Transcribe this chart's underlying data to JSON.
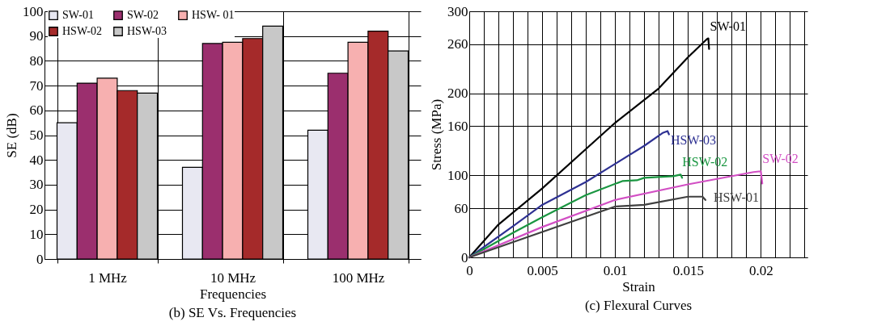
{
  "chart_data": [
    {
      "type": "bar",
      "title": "(b) SE Vs. Frequencies",
      "xlabel": "Frequencies",
      "ylabel": "SE (dB)",
      "categories": [
        "1 MHz",
        "10 MHz",
        "100 MHz"
      ],
      "series": [
        {
          "name": "SW-01",
          "color": "#e8e8f2",
          "values": [
            55,
            37,
            52
          ]
        },
        {
          "name": "SW-02",
          "color": "#9b2f6e",
          "values": [
            71,
            87,
            75
          ]
        },
        {
          "name": "HSW- 01",
          "color": "#f7b0b0",
          "values": [
            73,
            87.5,
            87.5
          ]
        },
        {
          "name": "HSW-02",
          "color": "#a52a2a",
          "values": [
            68,
            89,
            92
          ]
        },
        {
          "name": "HSW-03",
          "color": "#c8c8c8",
          "values": [
            67,
            94,
            84
          ]
        }
      ],
      "ylim": [
        0,
        100
      ],
      "yticks": [
        0,
        10,
        20,
        30,
        40,
        50,
        60,
        70,
        80,
        90,
        100
      ],
      "grid": true,
      "legend": "top left"
    },
    {
      "type": "line",
      "title": "(c) Flexural Curves",
      "xlabel": "Strain",
      "ylabel": "Stress (MPa)",
      "series": [
        {
          "name": "SW-01",
          "color": "#000000",
          "x": [
            0,
            0.002,
            0.005,
            0.008,
            0.01,
            0.013,
            0.015,
            0.0163,
            0.0164,
            0.01645
          ],
          "values": [
            0,
            40,
            84,
            132,
            164,
            206,
            244,
            266,
            267,
            254
          ]
        },
        {
          "name": "HSW-03",
          "color": "#2e3192",
          "x": [
            0,
            0.003,
            0.005,
            0.008,
            0.01,
            0.012,
            0.0133,
            0.0136,
            0.0137
          ],
          "values": [
            0,
            38,
            64,
            92,
            114,
            136,
            152,
            154,
            150
          ]
        },
        {
          "name": "HSW-02",
          "color": "#1a9641",
          "x": [
            0,
            0.003,
            0.005,
            0.008,
            0.0105,
            0.0115,
            0.012,
            0.014,
            0.0145,
            0.0146
          ],
          "values": [
            0,
            30,
            49,
            76,
            93,
            94,
            97,
            99,
            101,
            97
          ]
        },
        {
          "name": "SW-02",
          "color": "#d24fc4",
          "x": [
            0,
            0.005,
            0.01,
            0.015,
            0.0195,
            0.02,
            0.0201
          ],
          "values": [
            0,
            37,
            70,
            89,
            104,
            105,
            90
          ]
        },
        {
          "name": "HSW-01",
          "color": "#404040",
          "x": [
            0,
            0.005,
            0.01,
            0.012,
            0.015,
            0.016,
            0.0162
          ],
          "values": [
            0,
            31,
            62,
            64,
            74,
            74,
            70
          ]
        }
      ],
      "xlim": [
        0,
        0.0232
      ],
      "xticks": [
        0,
        {
          "value": 0.001,
          "label": null
        },
        {
          "value": 0.002,
          "label": null
        },
        {
          "value": 0.003,
          "label": null
        },
        {
          "value": 0.004,
          "label": null
        },
        0.005,
        {
          "value": 0.006,
          "label": null
        },
        {
          "value": 0.007,
          "label": null
        },
        {
          "value": 0.008,
          "label": null
        },
        {
          "value": 0.009,
          "label": null
        },
        0.01,
        {
          "value": 0.011,
          "label": null
        },
        {
          "value": 0.012,
          "label": null
        },
        {
          "value": 0.013,
          "label": null
        },
        {
          "value": 0.014,
          "label": null
        },
        0.015,
        {
          "value": 0.016,
          "label": null
        },
        {
          "value": 0.017,
          "label": null
        },
        {
          "value": 0.018,
          "label": null
        },
        {
          "value": 0.019,
          "label": null
        },
        0.02,
        {
          "value": 0.021,
          "label": null
        },
        {
          "value": 0.022,
          "label": null
        },
        {
          "value": 0.023,
          "label": null
        }
      ],
      "ylim": [
        0,
        300
      ],
      "yticks": [
        0,
        60,
        100,
        160,
        200,
        260,
        300
      ],
      "grid": true
    }
  ]
}
